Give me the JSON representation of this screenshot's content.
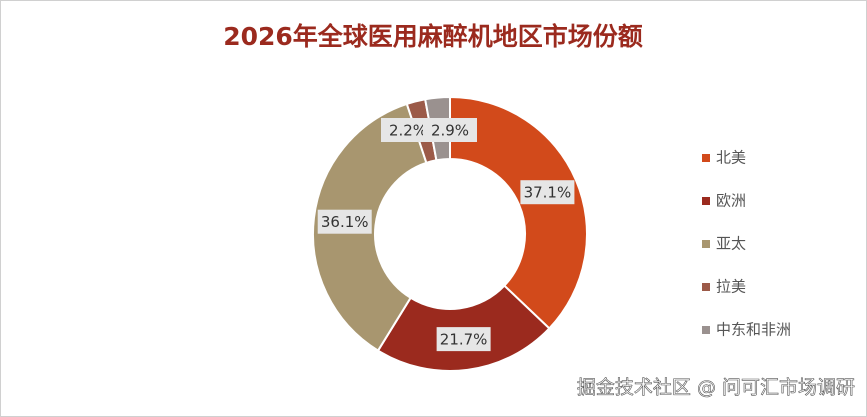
{
  "chart_data": {
    "type": "pie",
    "donut": true,
    "title": "2026年全球医用麻醉机地区市场份额",
    "categories": [
      "北美",
      "欧洲",
      "亚太",
      "拉美",
      "中东和非洲"
    ],
    "values": [
      37.1,
      21.7,
      36.1,
      2.2,
      2.9
    ],
    "value_labels": [
      "37.1%",
      "21.7%",
      "36.1%",
      "2.2%",
      "2.9%"
    ],
    "colors": [
      "#d24a1b",
      "#9b2a1e",
      "#a8966f",
      "#9c5a48",
      "#9a918f"
    ],
    "legend": "right",
    "watermark": "掘金技术社区 @ 问可汇市场调研"
  }
}
